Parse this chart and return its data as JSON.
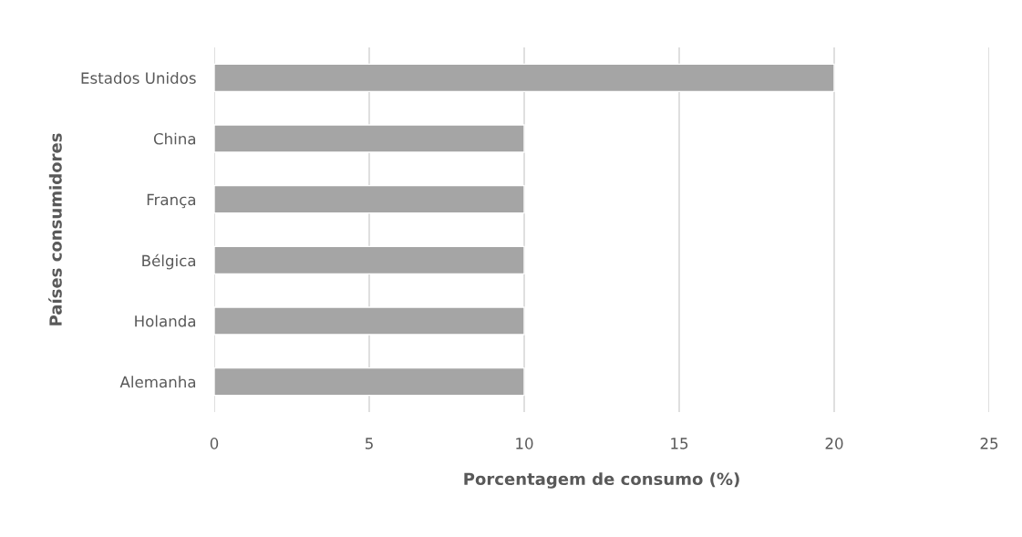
{
  "chart_data": {
    "type": "bar",
    "orientation": "horizontal",
    "xlabel": "Porcentagem de consumo (%)",
    "ylabel": "Países consumidores",
    "categories": [
      "Estados Unidos",
      "China",
      "França",
      "Bélgica",
      "Holanda",
      "Alemanha"
    ],
    "values": [
      20,
      10,
      10,
      10,
      10,
      10
    ],
    "color": "#a5a5a5",
    "xlim": [
      0,
      25
    ],
    "xticks": [
      0,
      5,
      10,
      15,
      20,
      25
    ],
    "grid": "x",
    "legend": false
  }
}
